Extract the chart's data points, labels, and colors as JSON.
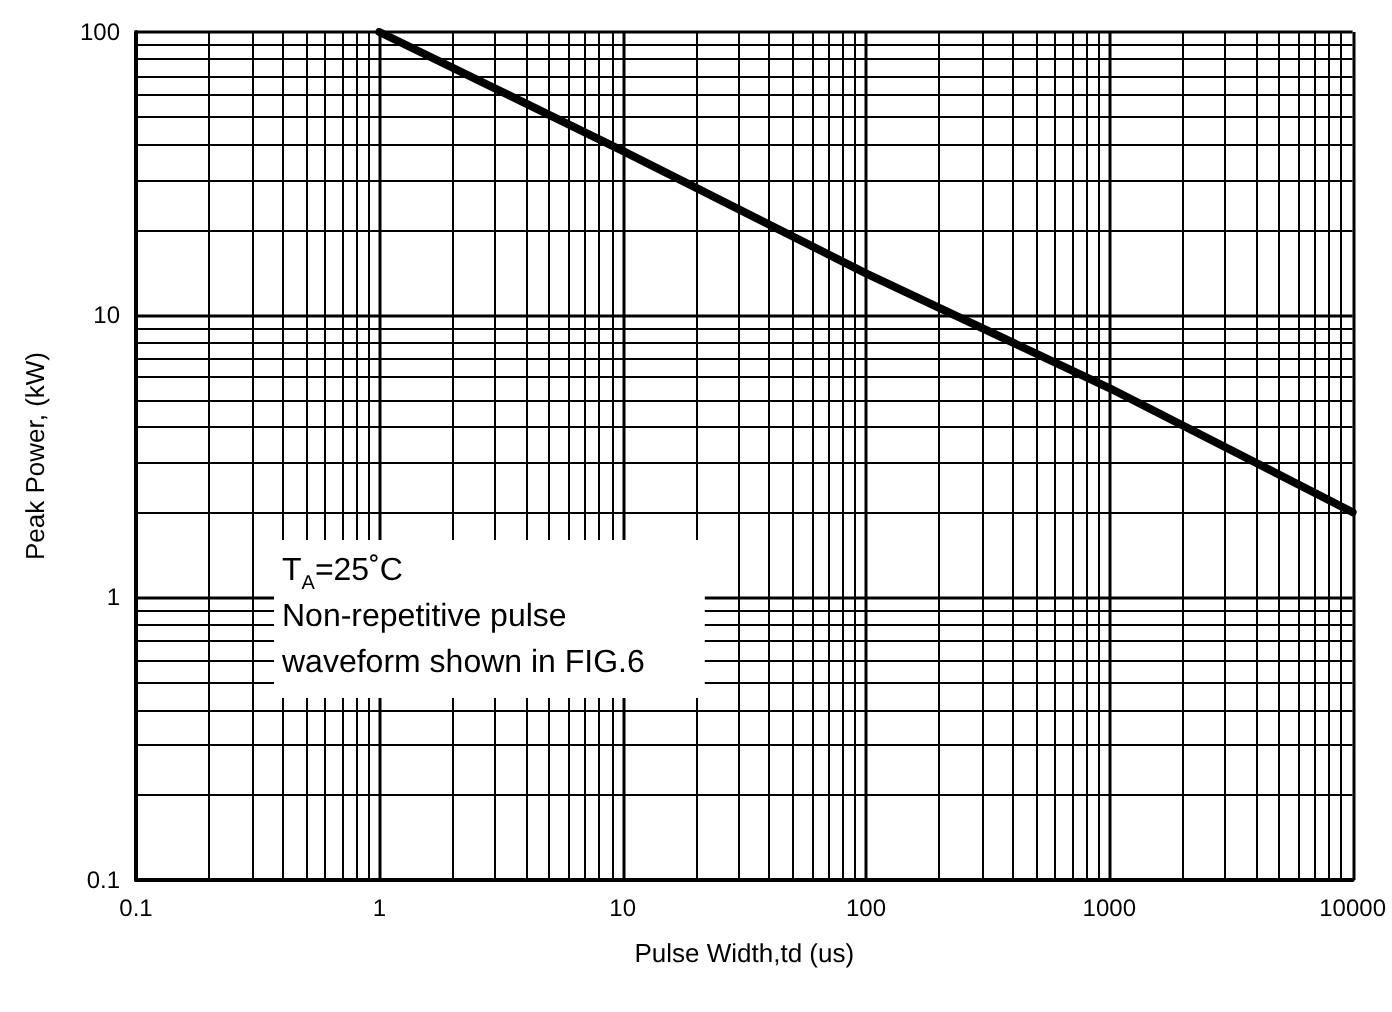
{
  "chart_data": {
    "type": "line",
    "xlabel": "Pulse Width,td (us)",
    "ylabel": "Peak Power, (kW)",
    "x": [
      1,
      10,
      100,
      1000,
      10000
    ],
    "series": [
      {
        "color": "#000000",
        "values": [
          100,
          38,
          14,
          5.5,
          2
        ]
      }
    ],
    "xlim": [
      0.1,
      10000
    ],
    "ylim": [
      0.1,
      100
    ],
    "xticks": [
      0.1,
      1,
      10,
      100,
      1000,
      10000
    ],
    "yticks": [
      0.1,
      1,
      10,
      100
    ],
    "log": "xy",
    "grid": true,
    "marker": "none",
    "line_style": "solid",
    "annotations": [
      "T$_{A}$=25˚C\nNon-repetitive pulse\nwaveform shown in FIG.6"
    ]
  }
}
